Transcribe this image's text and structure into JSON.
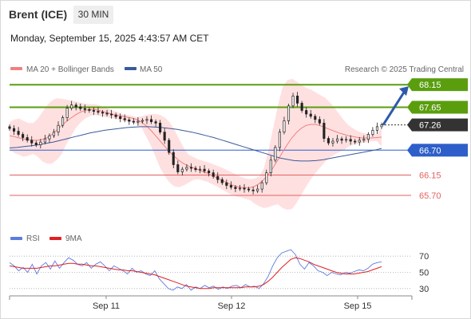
{
  "header": {
    "instrument": "Brent (ICE)",
    "timeframe": "30 MIN",
    "datetime": "Monday, September 15, 2025 4:43:57 AM CET"
  },
  "legend": {
    "ma20_bb": "MA 20 + Bollinger Bands",
    "ma50": "MA 50",
    "copyright": "Research © 2025 Trading Central",
    "rsi": "RSI",
    "ma9": "9MA"
  },
  "colors": {
    "ma20": "#f08080",
    "bollinger_fill": "#ffe0e0",
    "ma50": "#3a5a9a",
    "resistance": "#5a9e0e",
    "support_key": "#2e5ec9",
    "support_minor": "#e36161",
    "last_price": "#333333",
    "arrow": "#2d5aa8",
    "candle": "#222222",
    "rsi": "#5b7be0",
    "rsi_ma": "#e02020"
  },
  "chart_data": [
    {
      "type": "candlestick",
      "title": "Brent (ICE)",
      "timeframe": "30 MIN",
      "x_ticks": [
        "Sep 11",
        "Sep 12",
        "Sep 15"
      ],
      "ylim": [
        65.4,
        68.4
      ],
      "levels": [
        {
          "value": 68.15,
          "label": "68.15",
          "kind": "resistance"
        },
        {
          "value": 67.65,
          "label": "67.65",
          "kind": "resistance"
        },
        {
          "value": 67.26,
          "label": "67.26",
          "kind": "last"
        },
        {
          "value": 66.7,
          "label": "66.70",
          "kind": "pivot"
        },
        {
          "value": 66.15,
          "label": "66.15",
          "kind": "support"
        },
        {
          "value": 65.7,
          "label": "65.70",
          "kind": "support"
        }
      ],
      "close": [
        67.18,
        67.12,
        67.05,
        66.98,
        66.92,
        66.86,
        66.82,
        66.88,
        66.95,
        67.02,
        67.1,
        67.25,
        67.42,
        67.63,
        67.7,
        67.66,
        67.62,
        67.6,
        67.58,
        67.56,
        67.54,
        67.52,
        67.5,
        67.48,
        67.44,
        67.4,
        67.37,
        67.34,
        67.32,
        67.34,
        67.36,
        67.38,
        67.33,
        67.3,
        67.1,
        66.92,
        66.65,
        66.38,
        66.22,
        66.28,
        66.32,
        66.3,
        66.27,
        66.28,
        66.24,
        66.2,
        66.12,
        66.05,
        65.98,
        65.92,
        65.88,
        65.85,
        65.86,
        65.84,
        65.82,
        65.8,
        65.84,
        65.98,
        66.2,
        66.48,
        66.76,
        67.1,
        67.35,
        67.68,
        67.9,
        67.74,
        67.58,
        67.5,
        67.45,
        67.38,
        67.3,
        66.96,
        66.86,
        66.9,
        66.95,
        66.92,
        66.94,
        66.9,
        66.88,
        66.92,
        66.94,
        67.05,
        67.14,
        67.22,
        67.26
      ],
      "series": [
        {
          "name": "MA 20",
          "values": [
            67.02,
            67.0,
            66.97,
            66.95,
            66.93,
            66.92,
            66.92,
            66.94,
            66.98,
            67.05,
            67.14,
            67.24,
            67.33,
            67.41,
            67.48,
            67.54,
            67.58,
            67.6,
            67.6,
            67.58,
            67.55,
            67.52,
            67.49,
            67.47,
            67.45,
            67.43,
            67.41,
            67.38,
            67.32,
            67.24,
            67.14,
            67.02,
            66.9,
            66.78,
            66.66,
            66.56,
            66.47,
            66.4,
            66.35,
            66.31,
            66.27,
            66.23,
            66.19,
            66.14,
            66.09,
            66.04,
            65.99,
            65.94,
            65.9,
            65.88,
            65.87,
            65.87,
            65.9,
            65.96,
            66.05,
            66.17,
            66.32,
            66.49,
            66.66,
            66.83,
            66.98,
            67.1,
            67.19,
            67.25,
            67.27,
            67.27,
            67.24,
            67.2,
            67.16,
            67.12,
            67.08,
            67.05,
            67.02,
            67.0,
            66.98,
            66.97,
            66.97,
            66.97,
            66.98,
            66.99
          ]
        },
        {
          "name": "Bollinger upper",
          "values": [
            67.32,
            67.38,
            67.4,
            67.35,
            67.3,
            67.3,
            67.4,
            67.55,
            67.7,
            67.8,
            67.85,
            67.84,
            67.82,
            67.8,
            67.78,
            67.75,
            67.73,
            67.72,
            67.72,
            67.7,
            67.65,
            67.62,
            67.58,
            67.54,
            67.5,
            67.48,
            67.46,
            67.43,
            67.45,
            67.48,
            67.5,
            67.5,
            67.48,
            67.42,
            67.32,
            67.15,
            66.95,
            66.75,
            66.6,
            66.55,
            66.5,
            66.47,
            66.44,
            66.4,
            66.36,
            66.32,
            66.27,
            66.22,
            66.17,
            66.12,
            66.08,
            66.06,
            66.07,
            66.12,
            66.3,
            66.7,
            67.2,
            67.7,
            68.1,
            68.25,
            68.28,
            68.22,
            68.14,
            68.08,
            68.04,
            67.98,
            67.92,
            67.86,
            67.76,
            67.64,
            67.5,
            67.36,
            67.25,
            67.18,
            67.12,
            67.08,
            67.06,
            67.04,
            67.06,
            67.2
          ]
        },
        {
          "name": "Bollinger lower",
          "values": [
            66.72,
            66.64,
            66.6,
            66.55,
            66.58,
            66.62,
            66.55,
            66.45,
            66.4,
            66.4,
            66.48,
            66.6,
            66.82,
            67.0,
            67.18,
            67.3,
            67.4,
            67.45,
            67.48,
            67.46,
            67.44,
            67.42,
            67.4,
            67.38,
            67.36,
            67.34,
            67.32,
            67.28,
            67.2,
            67.0,
            66.8,
            66.55,
            66.3,
            66.12,
            65.98,
            65.9,
            65.88,
            65.92,
            65.98,
            66.04,
            66.06,
            66.03,
            66.0,
            65.95,
            65.9,
            65.84,
            65.78,
            65.72,
            65.68,
            65.66,
            65.63,
            65.6,
            65.52,
            65.46,
            65.42,
            65.44,
            65.48,
            65.5,
            65.42,
            65.38,
            65.4,
            65.54,
            65.72,
            65.9,
            66.06,
            66.2,
            66.32,
            66.44,
            66.54,
            66.6,
            66.66,
            66.7,
            66.78,
            66.82,
            66.84,
            66.86,
            66.88,
            66.9,
            66.9,
            66.78
          ]
        },
        {
          "name": "MA 50",
          "values": [
            66.75,
            66.76,
            66.78,
            66.8,
            66.82,
            66.85,
            66.88,
            66.92,
            66.96,
            67.0,
            67.04,
            67.08,
            67.11,
            67.14,
            67.16,
            67.18,
            67.2,
            67.21,
            67.22,
            67.22,
            67.21,
            67.2,
            67.18,
            67.16,
            67.13,
            67.1,
            67.06,
            67.02,
            66.98,
            66.93,
            66.88,
            66.83,
            66.78,
            66.73,
            66.68,
            66.63,
            66.58,
            66.53,
            66.5,
            66.47,
            66.46,
            66.46,
            66.47,
            66.49,
            66.52,
            66.55,
            66.58,
            66.61,
            66.64,
            66.67,
            66.7,
            66.74
          ]
        }
      ]
    },
    {
      "type": "line",
      "title": "RSI",
      "ylim": [
        20,
        80
      ],
      "y_ticks": [
        70,
        50,
        30
      ],
      "series": [
        {
          "name": "RSI",
          "values": [
            62,
            58,
            52,
            56,
            50,
            60,
            48,
            58,
            62,
            54,
            64,
            55,
            62,
            68,
            65,
            60,
            58,
            62,
            55,
            60,
            63,
            58,
            52,
            58,
            55,
            52,
            48,
            55,
            50,
            52,
            48,
            46,
            52,
            42,
            36,
            30,
            28,
            32,
            30,
            35,
            28,
            32,
            30,
            34,
            31,
            33,
            29,
            32,
            30,
            33,
            34,
            31,
            35,
            32,
            33,
            30,
            36,
            45,
            58,
            68,
            74,
            76,
            78,
            72,
            60,
            54,
            62,
            58,
            52,
            50,
            46,
            50,
            48,
            47,
            50,
            49,
            51,
            53,
            52,
            55,
            60,
            62,
            63
          ]
        },
        {
          "name": "9MA",
          "values": [
            58,
            57,
            56,
            55,
            55,
            55,
            55,
            56,
            57,
            58,
            58,
            59,
            60,
            61,
            61,
            60,
            60,
            59,
            58,
            58,
            57,
            56,
            55,
            54,
            53,
            53,
            52,
            52,
            51,
            50,
            49,
            48,
            47,
            45,
            43,
            41,
            39,
            37,
            35,
            33,
            32,
            31,
            30,
            30,
            30,
            31,
            31,
            31,
            31,
            31,
            31,
            31,
            32,
            32,
            32,
            33,
            35,
            39,
            44,
            50,
            56,
            61,
            66,
            68,
            67,
            65,
            63,
            60,
            58,
            56,
            54,
            52,
            50,
            49,
            48,
            48,
            48,
            49,
            50,
            51,
            53,
            55,
            57
          ]
        }
      ]
    }
  ]
}
